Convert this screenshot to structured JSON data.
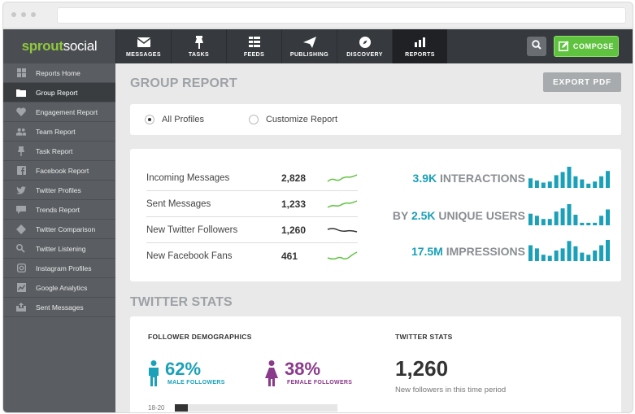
{
  "brand": {
    "part1": "sprout",
    "part2": "social"
  },
  "nav": {
    "items": [
      {
        "label": "MESSAGES",
        "icon": "envelope-icon"
      },
      {
        "label": "TASKS",
        "icon": "pin-icon"
      },
      {
        "label": "FEEDS",
        "icon": "feeds-icon"
      },
      {
        "label": "PUBLISHING",
        "icon": "paper-plane-icon"
      },
      {
        "label": "DISCOVERY",
        "icon": "compass-icon"
      },
      {
        "label": "REPORTS",
        "icon": "bar-chart-icon"
      }
    ],
    "active": "REPORTS",
    "compose_label": "COMPOSE"
  },
  "sidebar": {
    "items": [
      {
        "label": "Reports Home",
        "icon": "grid-icon"
      },
      {
        "label": "Group Report",
        "icon": "folder-icon"
      },
      {
        "label": "Engagement Report",
        "icon": "heart-icon"
      },
      {
        "label": "Team Report",
        "icon": "team-icon"
      },
      {
        "label": "Task Report",
        "icon": "pin-icon"
      },
      {
        "label": "Facebook Report",
        "icon": "facebook-icon"
      },
      {
        "label": "Twitter Profiles",
        "icon": "twitter-icon"
      },
      {
        "label": "Trends Report",
        "icon": "chat-icon"
      },
      {
        "label": "Twitter Comparison",
        "icon": "diamond-icon"
      },
      {
        "label": "Twitter Listening",
        "icon": "listening-icon"
      },
      {
        "label": "Instagram Profiles",
        "icon": "instagram-icon"
      },
      {
        "label": "Google Analytics",
        "icon": "analytics-icon"
      },
      {
        "label": "Sent Messages",
        "icon": "outbox-icon"
      }
    ],
    "active": "Group Report"
  },
  "page": {
    "title": "GROUP REPORT",
    "export_label": "EXPORT PDF"
  },
  "profile_options": [
    {
      "label": "All Profiles",
      "selected": true
    },
    {
      "label": "Customize Report",
      "selected": false
    }
  ],
  "stats": [
    {
      "label": "Incoming Messages",
      "value": "2,828",
      "trend_color": "#5fc33f"
    },
    {
      "label": "Sent Messages",
      "value": "1,233",
      "trend_color": "#5fc33f"
    },
    {
      "label": "New Twitter Followers",
      "value": "1,260",
      "trend_color": "#333333"
    },
    {
      "label": "New Facebook Fans",
      "value": "461",
      "trend_color": "#5fc33f"
    }
  ],
  "metrics": [
    {
      "prefix": "",
      "number": "3.9K",
      "suffix": " INTERACTIONS",
      "bars": [
        0.45,
        0.35,
        0.25,
        0.3,
        0.6,
        0.75,
        1.0,
        0.55,
        0.4,
        0.2,
        0.3,
        0.55,
        0.8
      ]
    },
    {
      "prefix": "BY ",
      "number": "2.5K",
      "suffix": " UNIQUE USERS",
      "bars": [
        0.55,
        0.45,
        0.3,
        0.3,
        0.65,
        0.8,
        1.0,
        0.5,
        0.12,
        0.12,
        0.12,
        0.45,
        0.75
      ]
    },
    {
      "prefix": "",
      "number": "17.5M",
      "suffix": " IMPRESSIONS",
      "bars": [
        0.75,
        0.6,
        0.3,
        0.25,
        0.5,
        0.6,
        0.95,
        0.7,
        0.4,
        0.3,
        0.5,
        0.75,
        1.0
      ]
    }
  ],
  "twitter": {
    "section_title": "TWITTER STATS",
    "demographics_heading": "FOLLOWER DEMOGRAPHICS",
    "male": {
      "pct": "62%",
      "label": "MALE FOLLOWERS",
      "color": "#1aa0b8"
    },
    "female": {
      "pct": "38%",
      "label": "FEMALE FOLLOWERS",
      "color": "#8a3a8a"
    },
    "stats_heading": "TWITTER STATS",
    "followers": "1,260",
    "followers_caption": "New followers in this time period",
    "age_groups": [
      {
        "label": "18-20",
        "share": 0.08
      }
    ]
  },
  "colors": {
    "accent": "#1aa0b8",
    "compose": "#5fc33f",
    "brand_green": "#8fc73e"
  }
}
